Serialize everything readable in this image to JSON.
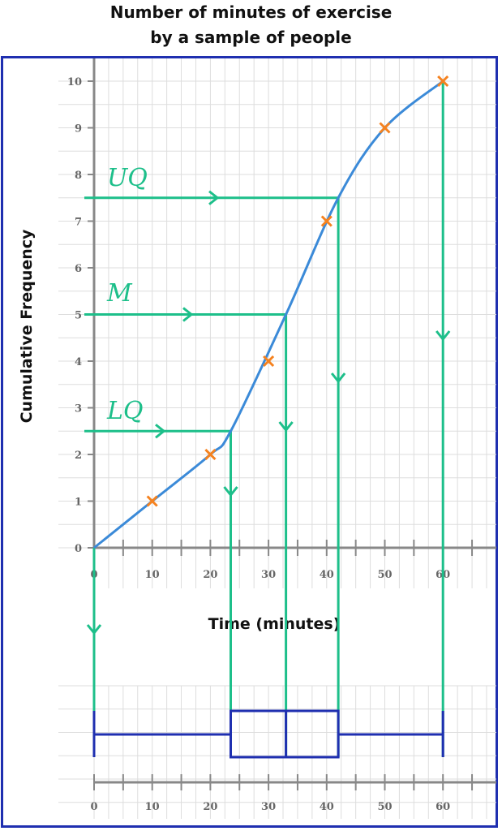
{
  "title_line1": "Number of minutes of exercise",
  "title_line2": "by a sample of people",
  "colors": {
    "curve": "#3b8ad8",
    "points": "#f5821f",
    "guides": "#1dbf8a",
    "boxplot": "#1f2fb0",
    "grid": "#dddddd",
    "axis": "#888888"
  },
  "chart_data": [
    {
      "type": "line",
      "title": "Number of minutes of exercise by a sample of people",
      "xlabel": "Time (minutes)",
      "ylabel": "Cumulative Frequency",
      "xlim": [
        0,
        70
      ],
      "ylim": [
        0,
        10
      ],
      "x_ticks": [
        0,
        10,
        20,
        30,
        40,
        50,
        60
      ],
      "y_ticks": [
        0,
        1,
        2,
        3,
        4,
        5,
        6,
        7,
        8,
        9,
        10
      ],
      "grid": true,
      "points": [
        {
          "x": 10,
          "y": 1
        },
        {
          "x": 20,
          "y": 2
        },
        {
          "x": 30,
          "y": 4
        },
        {
          "x": 40,
          "y": 7
        },
        {
          "x": 50,
          "y": 9
        },
        {
          "x": 60,
          "y": 10
        }
      ],
      "curve": [
        {
          "x": 0,
          "y": 0
        },
        {
          "x": 10,
          "y": 1
        },
        {
          "x": 20,
          "y": 2
        },
        {
          "x": 23.5,
          "y": 2.5
        },
        {
          "x": 33,
          "y": 5
        },
        {
          "x": 42,
          "y": 7.5
        },
        {
          "x": 50,
          "y": 9
        },
        {
          "x": 60,
          "y": 10
        }
      ],
      "quartile_lines": [
        {
          "label": "UQ",
          "y": 7.5,
          "x": 42
        },
        {
          "label": "M",
          "y": 5,
          "x": 33
        },
        {
          "label": "LQ",
          "y": 2.5,
          "x": 23.5
        }
      ]
    },
    {
      "type": "boxplot",
      "min": 0,
      "lq": 23.5,
      "median": 33,
      "uq": 42,
      "max": 60,
      "x_ticks": [
        0,
        10,
        20,
        30,
        40,
        50,
        60
      ]
    }
  ]
}
